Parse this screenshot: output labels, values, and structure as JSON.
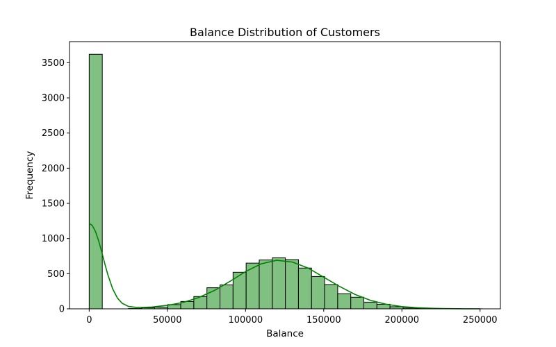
{
  "chart_data": {
    "type": "bar",
    "title": "Balance Distribution of Customers",
    "xlabel": "Balance",
    "ylabel": "Frequency",
    "xlim": [
      -12600,
      263000
    ],
    "ylim": [
      0,
      3800
    ],
    "xticks": [
      0,
      50000,
      100000,
      150000,
      200000,
      250000
    ],
    "yticks": [
      0,
      500,
      1000,
      1500,
      2000,
      2500,
      3000,
      3500
    ],
    "bin_width": 8365,
    "bins": [
      {
        "x0": 0,
        "value": 3620
      },
      {
        "x0": 8365,
        "value": 0
      },
      {
        "x0": 16730,
        "value": 0
      },
      {
        "x0": 25095,
        "value": 4
      },
      {
        "x0": 33460,
        "value": 14
      },
      {
        "x0": 41825,
        "value": 25
      },
      {
        "x0": 50190,
        "value": 60
      },
      {
        "x0": 58555,
        "value": 105
      },
      {
        "x0": 66920,
        "value": 175
      },
      {
        "x0": 75285,
        "value": 300
      },
      {
        "x0": 83650,
        "value": 340
      },
      {
        "x0": 92015,
        "value": 520
      },
      {
        "x0": 100380,
        "value": 650
      },
      {
        "x0": 108745,
        "value": 695
      },
      {
        "x0": 117110,
        "value": 725
      },
      {
        "x0": 125475,
        "value": 700
      },
      {
        "x0": 133840,
        "value": 580
      },
      {
        "x0": 142205,
        "value": 460
      },
      {
        "x0": 150570,
        "value": 345
      },
      {
        "x0": 158935,
        "value": 215
      },
      {
        "x0": 167300,
        "value": 165
      },
      {
        "x0": 175665,
        "value": 95
      },
      {
        "x0": 184030,
        "value": 65
      },
      {
        "x0": 192395,
        "value": 30
      },
      {
        "x0": 200760,
        "value": 12
      },
      {
        "x0": 209125,
        "value": 5
      },
      {
        "x0": 217490,
        "value": 2
      },
      {
        "x0": 225855,
        "value": 1
      },
      {
        "x0": 234220,
        "value": 0
      },
      {
        "x0": 242585,
        "value": 1
      }
    ],
    "kde": {
      "x": [
        0,
        2000,
        4000,
        6000,
        8000,
        10000,
        12000,
        15000,
        18000,
        21000,
        25000,
        30000,
        35000,
        40000,
        50000,
        60000,
        70000,
        80000,
        90000,
        100000,
        110000,
        120000,
        130000,
        140000,
        150000,
        160000,
        170000,
        180000,
        190000,
        200000,
        210000,
        220000,
        230000,
        240000,
        250000
      ],
      "y": [
        1215,
        1185,
        1100,
        970,
        810,
        640,
        480,
        285,
        155,
        80,
        35,
        20,
        20,
        25,
        50,
        90,
        160,
        260,
        390,
        530,
        640,
        690,
        665,
        580,
        450,
        320,
        205,
        120,
        65,
        32,
        15,
        7,
        3,
        1,
        0
      ]
    },
    "grid": false,
    "legend": "none",
    "colors": {
      "bar_fill": "#80c080",
      "bar_edge": "#000000",
      "kde_line": "#008000"
    }
  }
}
